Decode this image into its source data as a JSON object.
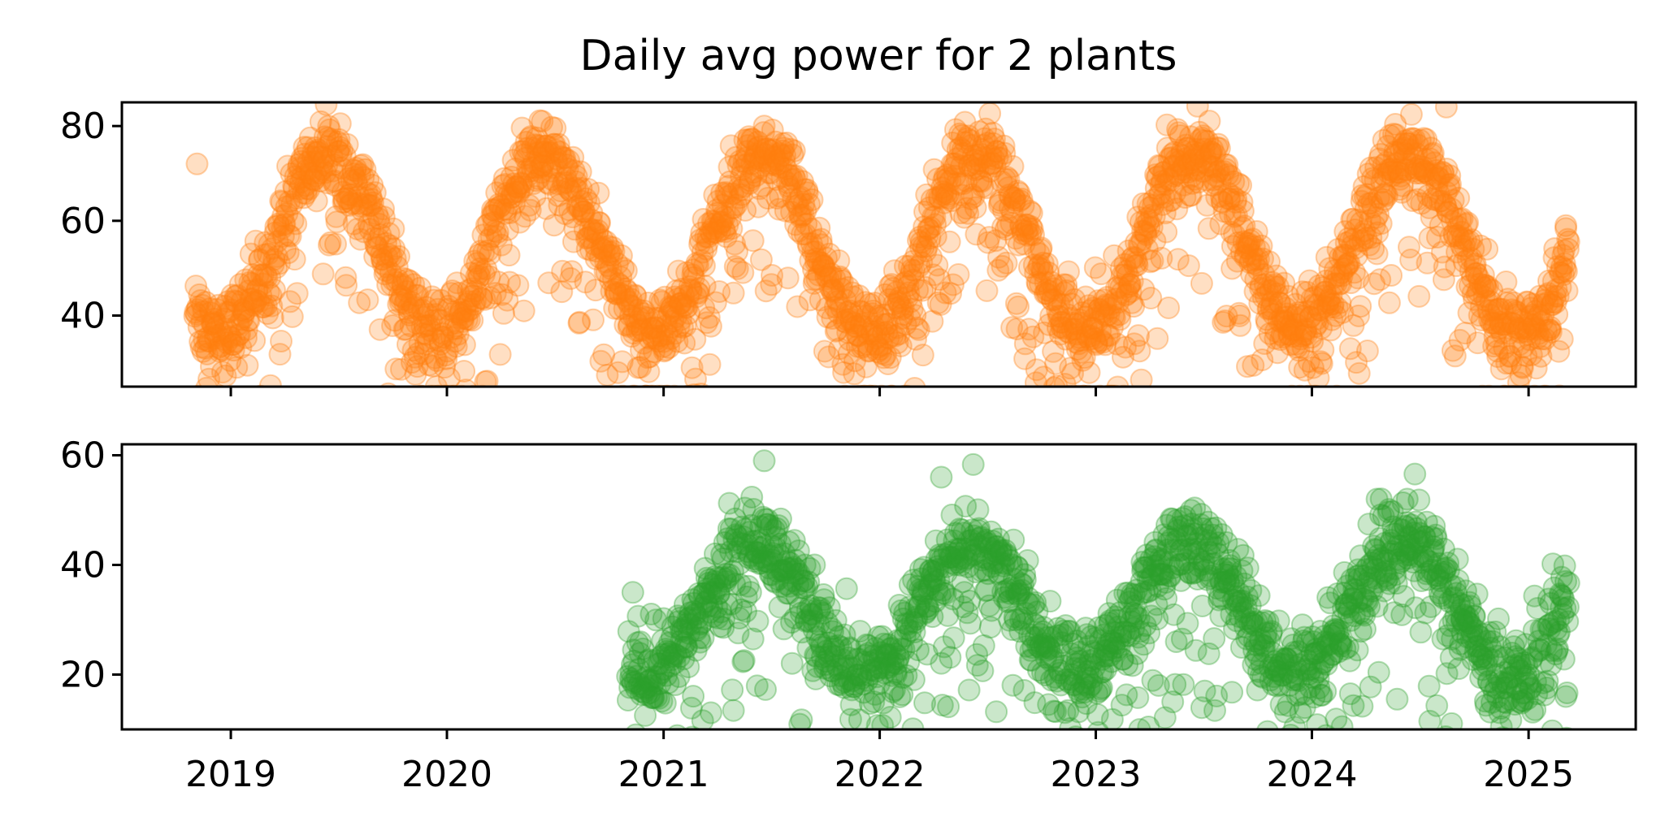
{
  "chart_data": {
    "type": "scatter",
    "title": "Daily avg power for 2 plants",
    "xlim": [
      "2018-07-01",
      "2025-07-01"
    ],
    "x_ticks": [
      "2019",
      "2020",
      "2021",
      "2022",
      "2023",
      "2024",
      "2025"
    ],
    "grid": false,
    "legend": "none",
    "panels": [
      {
        "ylim": [
          25,
          85
        ],
        "y_ticks": [
          40,
          60,
          80
        ],
        "color": "#ff7f0e",
        "start": "2018-11-01",
        "end": "2025-03-10",
        "mean": 55,
        "amplitude": 19,
        "peak_day_of_year": 165,
        "spread": 4,
        "outlier_low": 25,
        "anchor_points": [
          [
            "2018-11-05",
            72
          ],
          [
            "2019-06-15",
            80
          ],
          [
            "2020-06-10",
            81
          ],
          [
            "2021-06-20",
            80
          ],
          [
            "2022-05-20",
            78
          ],
          [
            "2023-06-15",
            73
          ],
          [
            "2024-08-15",
            84
          ],
          [
            "2024-05-01",
            77
          ],
          [
            "2025-03-05",
            59
          ]
        ]
      },
      {
        "ylim": [
          10,
          62
        ],
        "y_ticks": [
          20,
          40,
          60
        ],
        "color": "#2ca02c",
        "start": "2020-11-01",
        "end": "2025-03-10",
        "mean": 32,
        "amplitude": 12,
        "peak_day_of_year": 155,
        "spread": 4,
        "outlier_low": 10,
        "anchor_points": [
          [
            "2020-11-10",
            35
          ],
          [
            "2021-06-20",
            59
          ],
          [
            "2022-04-15",
            56
          ],
          [
            "2023-04-15",
            40
          ],
          [
            "2024-04-20",
            52
          ],
          [
            "2024-06-10",
            52
          ],
          [
            "2025-03-05",
            37
          ],
          [
            "2024-09-10",
            30
          ]
        ]
      }
    ]
  }
}
